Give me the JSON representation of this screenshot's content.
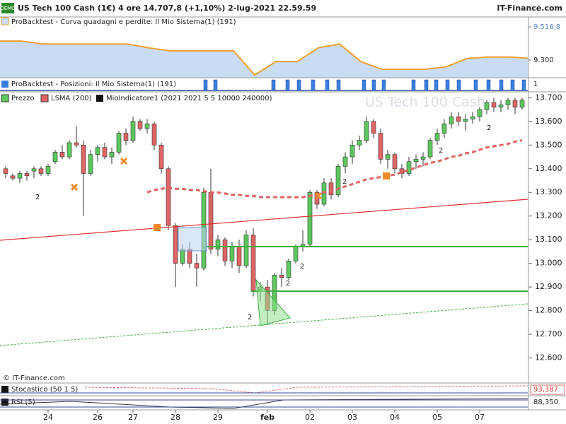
{
  "header": {
    "badge": "DEMO",
    "title": "US Tech 100 Cash (1€) 4 ore 14.707,8 (+1,10%) 2-lug-2021 22.59.59",
    "brand": "IT-Finance.com"
  },
  "equity_panel": {
    "label": "ProBacktest - Curva guadagni e perdite: Il Mio Sistema(1) (191)",
    "ylim": [
      9145,
      9516.8
    ],
    "yticks": [
      {
        "value": 9516.8,
        "label": "9.516,8"
      },
      {
        "value": 9300,
        "label": "9.300"
      }
    ],
    "color": "#f0a030",
    "fill": "#c9dcf4",
    "values": [
      9424,
      9424,
      9405,
      9405,
      9405,
      9405,
      9405,
      9380,
      9360,
      9360,
      9360,
      9360,
      9203,
      9290,
      9290,
      9380,
      9405,
      9290,
      9240,
      9240,
      9240,
      9255,
      9310,
      9320,
      9320,
      9310
    ]
  },
  "positions_panel": {
    "label": "ProBacktest - Posizioni: Il Mio Sistema(1) (191)",
    "tick": "1"
  },
  "chart_data": {
    "type": "candlestick",
    "watermark": "US Tech 100 Cash",
    "copyright": "© IT-Finance.com",
    "legend": [
      "Prezzo",
      "LSMA (200)",
      "MioIndicatore1 (2021 2021 5 5 10000 240000)"
    ],
    "ylim": [
      12500,
      13725
    ],
    "yticks": [
      {
        "value": 12600,
        "label": "12.600"
      },
      {
        "value": 12700,
        "label": "12.700"
      },
      {
        "value": 12800,
        "label": "12.800"
      },
      {
        "value": 12900,
        "label": "12.900"
      },
      {
        "value": 13000,
        "label": "13.000"
      },
      {
        "value": 13100,
        "label": "13.100"
      },
      {
        "value": 13200,
        "label": "13.200"
      },
      {
        "value": 13300,
        "label": "13.300"
      },
      {
        "value": 13400,
        "label": "13.400"
      },
      {
        "value": 13500,
        "label": "13.500"
      },
      {
        "value": 13600,
        "label": "13.600"
      },
      {
        "value": 13700,
        "label": "13.700"
      }
    ],
    "categories": [
      null,
      null,
      null,
      null,
      null,
      null,
      "24",
      null,
      null,
      null,
      null,
      null,
      null,
      "26",
      null,
      null,
      null,
      null,
      "27",
      null,
      null,
      null,
      null,
      null,
      "28",
      null,
      null,
      null,
      null,
      null,
      "29",
      null,
      null,
      null,
      null,
      null,
      null,
      "feb",
      null,
      null,
      null,
      null,
      null,
      "02",
      null,
      null,
      null,
      null,
      null,
      "03",
      null,
      null,
      null,
      null,
      null,
      "04",
      null,
      null,
      null,
      null,
      null,
      "05",
      null,
      null,
      null,
      null,
      null,
      "07",
      null,
      null,
      null,
      null,
      null,
      null
    ],
    "up_color": "#5cc85c",
    "down_color": "#e06464",
    "open": [
      13400,
      13370,
      13360,
      13380,
      13390,
      13400,
      13380,
      13430,
      13470,
      13450,
      13510,
      13500,
      13380,
      13460,
      13490,
      13450,
      13470,
      13550,
      13520,
      13600,
      13570,
      13590,
      13500,
      13400,
      13160,
      13000,
      13060,
      13000,
      12980,
      13300,
      13060,
      13100,
      13010,
      13070,
      12990,
      13120,
      12880,
      12900,
      12800,
      12950,
      12940,
      13010,
      13070,
      13080,
      13300,
      13250,
      13340,
      13290,
      13410,
      13450,
      13500,
      13520,
      13600,
      13550,
      13440,
      13460,
      13400,
      13380,
      13430,
      13440,
      13450,
      13520,
      13550,
      13590,
      13620,
      13600,
      13610,
      13620,
      13650,
      13680,
      13660,
      13670,
      13690,
      13660
    ],
    "high": [
      13410,
      13380,
      13390,
      13390,
      13410,
      13410,
      13420,
      13480,
      13500,
      13520,
      13580,
      13520,
      13480,
      13500,
      13510,
      13490,
      13560,
      13570,
      13620,
      13610,
      13610,
      13600,
      13510,
      13410,
      13170,
      13080,
      13090,
      13040,
      13320,
      13400,
      13120,
      13110,
      13090,
      13100,
      13140,
      13150,
      12920,
      12930,
      12960,
      12980,
      13020,
      13080,
      13140,
      13310,
      13310,
      13360,
      13360,
      13420,
      13470,
      13520,
      13540,
      13620,
      13610,
      13570,
      13480,
      13470,
      13420,
      13450,
      13460,
      13470,
      13530,
      13570,
      13610,
      13640,
      13640,
      13630,
      13640,
      13660,
      13690,
      13700,
      13690,
      13700,
      13700,
      13700
    ],
    "low": [
      13360,
      13350,
      13340,
      13350,
      13360,
      13370,
      13370,
      13420,
      13440,
      13440,
      13490,
      13200,
      13370,
      13430,
      13440,
      13420,
      13460,
      13500,
      13510,
      13560,
      13550,
      13480,
      13380,
      13140,
      12900,
      12990,
      12980,
      12900,
      12970,
      13040,
      13030,
      12990,
      12980,
      12960,
      12980,
      12860,
      12840,
      12740,
      12780,
      12900,
      12930,
      13000,
      13050,
      13070,
      13230,
      13240,
      13270,
      13280,
      13380,
      13420,
      13480,
      13510,
      13530,
      13420,
      13400,
      13380,
      13360,
      13370,
      13400,
      13410,
      13440,
      13500,
      13530,
      13570,
      13580,
      13560,
      13590,
      13600,
      13630,
      13640,
      13640,
      13650,
      13630,
      13650
    ],
    "close": [
      13380,
      13360,
      13380,
      13370,
      13400,
      13380,
      13410,
      13470,
      13450,
      13510,
      13500,
      13380,
      13460,
      13490,
      13450,
      13470,
      13550,
      13520,
      13600,
      13570,
      13590,
      13500,
      13400,
      13160,
      13000,
      13060,
      13000,
      12980,
      13300,
      13060,
      13100,
      13010,
      13070,
      12990,
      13120,
      12880,
      12900,
      12800,
      12950,
      12940,
      13010,
      13070,
      13080,
      13300,
      13250,
      13340,
      13290,
      13410,
      13450,
      13500,
      13520,
      13600,
      13550,
      13440,
      13460,
      13400,
      13380,
      13430,
      13440,
      13450,
      13520,
      13550,
      13590,
      13620,
      13600,
      13610,
      13620,
      13650,
      13680,
      13660,
      13670,
      13690,
      13660,
      13690
    ],
    "lsma": {
      "name": "LSMA (200)",
      "color": "#e06464",
      "values": [
        null,
        null,
        null,
        null,
        null,
        null,
        null,
        null,
        null,
        null,
        null,
        null,
        null,
        null,
        null,
        null,
        null,
        null,
        null,
        null,
        13300,
        13310,
        13315,
        13320,
        13315,
        13315,
        13310,
        13310,
        13305,
        13300,
        13300,
        13295,
        13290,
        13290,
        13285,
        13285,
        13280,
        13280,
        13280,
        13280,
        13280,
        13280,
        13280,
        13285,
        13290,
        13300,
        13305,
        13315,
        13325,
        13335,
        13345,
        13355,
        13360,
        13365,
        13370,
        13375,
        13385,
        13395,
        13405,
        13415,
        13425,
        13430,
        13440,
        13450,
        13455,
        13465,
        13470,
        13480,
        13490,
        13495,
        13500,
        13505,
        13515,
        13520
      ]
    }
  },
  "signals": [
    "2",
    "2",
    "2",
    "2",
    "2",
    "2",
    "2"
  ],
  "stoch_panel": {
    "label": "Stocastico (50 1 5)",
    "value": "93,387"
  },
  "rsi_panel": {
    "label": "RSI (5)",
    "value": "88,350"
  }
}
